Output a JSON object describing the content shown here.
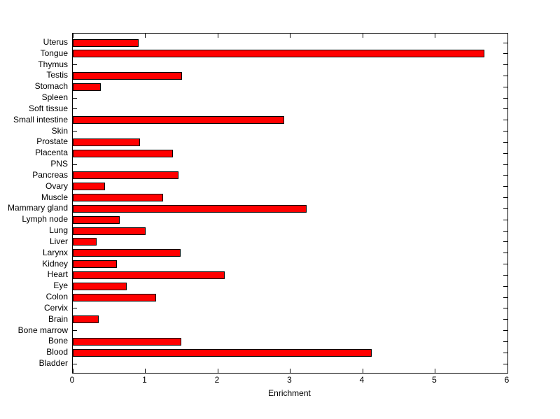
{
  "chart_data": {
    "type": "bar",
    "orientation": "horizontal",
    "title": "",
    "xlabel": "Enrichment",
    "ylabel": "",
    "xlim": [
      0,
      6
    ],
    "x_ticks": [
      0,
      1,
      2,
      3,
      4,
      5,
      6
    ],
    "x_tick_labels": [
      "0",
      "1",
      "2",
      "3",
      "4",
      "5",
      "6"
    ],
    "grid": false,
    "legend": false,
    "bar_color": "#ff0000",
    "bar_edge_color": "#000000",
    "axes_color": "#000000",
    "background_color": "#ffffff",
    "categories": [
      "Uterus",
      "Tongue",
      "Thymus",
      "Testis",
      "Stomach",
      "Spleen",
      "Soft tissue",
      "Small intestine",
      "Skin",
      "Prostate",
      "Placenta",
      "PNS",
      "Pancreas",
      "Ovary",
      "Muscle",
      "Mammary gland",
      "Lymph node",
      "Lung",
      "Liver",
      "Larynx",
      "Kidney",
      "Heart",
      "Eye",
      "Colon",
      "Cervix",
      "Brain",
      "Bone marrow",
      "Bone",
      "Blood",
      "Bladder"
    ],
    "values": [
      0.91,
      5.68,
      0,
      1.51,
      0.39,
      0,
      0,
      2.92,
      0,
      0.93,
      1.38,
      0,
      1.46,
      0.44,
      1.25,
      3.23,
      0.65,
      1.0,
      0.33,
      1.49,
      0.61,
      2.1,
      0.74,
      1.15,
      0,
      0.36,
      0,
      1.5,
      4.13,
      0
    ]
  }
}
